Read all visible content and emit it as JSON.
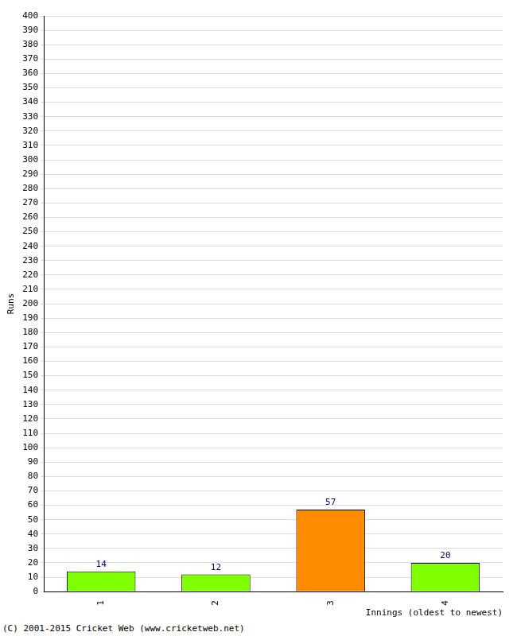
{
  "chart_data": {
    "type": "bar",
    "x_label": "Innings (oldest to newest)",
    "y_label": "Runs",
    "annotations": [
      "(C) 2001-2015 Cricket Web (www.cricketweb.net)"
    ],
    "categories": [
      "1",
      "2",
      "3",
      "4"
    ],
    "values": [
      14,
      12,
      57,
      20
    ],
    "colors": [
      "#80ff00",
      "#80ff00",
      "#ff8c00",
      "#80ff00"
    ],
    "ylim": [
      0,
      400
    ],
    "yticks": [
      0,
      10,
      20,
      30,
      40,
      50,
      60,
      70,
      80,
      90,
      100,
      110,
      120,
      130,
      140,
      150,
      160,
      170,
      180,
      190,
      200,
      210,
      220,
      230,
      240,
      250,
      260,
      270,
      280,
      290,
      300,
      310,
      320,
      330,
      340,
      350,
      360,
      370,
      380,
      390,
      400
    ],
    "grid": true,
    "data_labels": true
  }
}
